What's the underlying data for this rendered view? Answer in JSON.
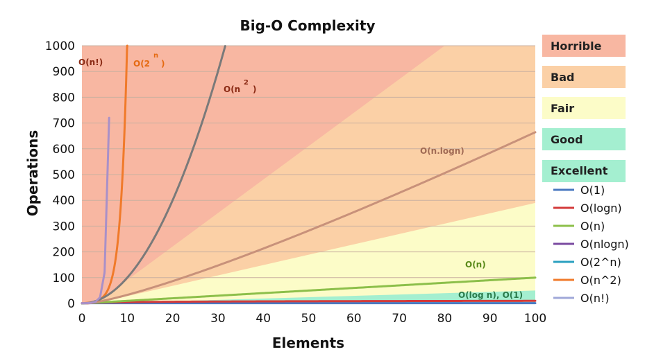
{
  "chart_data": {
    "type": "line",
    "title": "Big-O Complexity",
    "xlabel": "Elements",
    "ylabel": "Operations",
    "xlim": [
      0,
      100
    ],
    "ylim": [
      0,
      1000
    ],
    "x_ticks": [
      "0",
      "10",
      "20",
      "30",
      "40",
      "50",
      "60",
      "70",
      "80",
      "90",
      "100"
    ],
    "y_ticks": [
      "0",
      "100",
      "200",
      "300",
      "400",
      "500",
      "600",
      "700",
      "800",
      "900",
      "1000"
    ],
    "grid": true,
    "bands": [
      {
        "label": "Horrible",
        "color": "#f8b7a2"
      },
      {
        "label": "Bad",
        "color": "#fbd0a6"
      },
      {
        "label": "Fair",
        "color": "#fcfcc8"
      },
      {
        "label": "Good",
        "color": "#a4efd0"
      },
      {
        "label": "Excellent",
        "color": "#a4efd0"
      }
    ],
    "series": [
      {
        "name": "O(1)",
        "color": "#4a78c0",
        "x": [
          0,
          100
        ],
        "y": [
          1,
          1
        ]
      },
      {
        "name": "O(logn)",
        "color": "#d33a3a",
        "x": [
          1,
          10,
          50,
          100
        ],
        "y": [
          0,
          3.3,
          5.6,
          6.6
        ]
      },
      {
        "name": "O(n)",
        "color": "#8cbf4a",
        "x": [
          0,
          100
        ],
        "y": [
          0,
          100
        ]
      },
      {
        "name": "O(nlogn)",
        "color": "#c8917a",
        "x": [
          1,
          10,
          20,
          40,
          60,
          80,
          100
        ],
        "y": [
          0,
          33,
          86,
          213,
          354,
          506,
          664
        ]
      },
      {
        "name": "O(2^n)",
        "color": "#f07a2a",
        "x": [
          0,
          4,
          6,
          8,
          9,
          10
        ],
        "y": [
          1,
          16,
          64,
          256,
          512,
          1000
        ]
      },
      {
        "name": "O(n^2)",
        "color": "#7a7a7a",
        "x": [
          0,
          5,
          10,
          15,
          20,
          25,
          31.6
        ],
        "y": [
          0,
          25,
          100,
          225,
          400,
          625,
          1000
        ]
      },
      {
        "name": "O(n!)",
        "color": "#a990c8",
        "x": [
          0,
          3,
          4,
          5,
          5.5,
          6
        ],
        "y": [
          1,
          6,
          24,
          120,
          290,
          720
        ]
      }
    ],
    "annotations": [
      {
        "text": "O(n!)",
        "color": "#8a2a14"
      },
      {
        "text": "O(2",
        "color": "#e56a12"
      },
      {
        "text": "n",
        "color": "#e56a12"
      },
      {
        "text": "O(n",
        "color": "#8a2a14"
      },
      {
        "text": "2",
        "color": "#8a2a14"
      },
      {
        "text": ")",
        "color": "#8a2a14"
      },
      {
        "text": ")",
        "color": "#e56a12"
      },
      {
        "text": "O(n.logn)",
        "color": "#a06a54"
      },
      {
        "text": "O(n)",
        "color": "#5a8a1a"
      },
      {
        "text": "O(log n), O(1)",
        "color": "#2a7a4a"
      }
    ]
  },
  "legend": {
    "items": [
      {
        "label": "O(1)",
        "color": "#4a78c0"
      },
      {
        "label": "O(logn)",
        "color": "#d33a3a"
      },
      {
        "label": "O(n)",
        "color": "#8cbf4a"
      },
      {
        "label": "O(nlogn)",
        "color": "#7a4aa0"
      },
      {
        "label": "O(2^n)",
        "color": "#2aa0c0"
      },
      {
        "label": "O(n^2)",
        "color": "#f07a2a"
      },
      {
        "label": "O(n!)",
        "color": "#a0a8d8"
      }
    ]
  }
}
